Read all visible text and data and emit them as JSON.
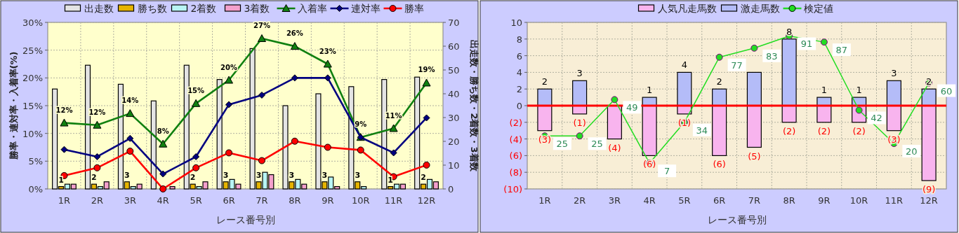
{
  "chart_data": [
    {
      "type": "bar",
      "xlabel": "レース番号別",
      "ylabel": "勝率・連対率・入着率(%)",
      "y2label": "出走数・勝ち数・2着数・3着数",
      "categories": [
        "1R",
        "2R",
        "3R",
        "4R",
        "5R",
        "6R",
        "7R",
        "8R",
        "9R",
        "10R",
        "11R",
        "12R"
      ],
      "ylim": [
        0,
        30
      ],
      "yticks": [
        {
          "value": 0,
          "label": "0%"
        },
        {
          "value": 5,
          "label": "5%"
        },
        {
          "value": 10,
          "label": "10%"
        },
        {
          "value": 15,
          "label": "15%"
        },
        {
          "value": 20,
          "label": "20%"
        },
        {
          "value": 25,
          "label": "25%"
        },
        {
          "value": 30,
          "label": "30%"
        }
      ],
      "y2lim": [
        0,
        70
      ],
      "y2ticks": [
        0,
        10,
        20,
        30,
        40,
        50,
        60,
        70
      ],
      "grid": true,
      "legend": "top",
      "series": [
        {
          "name": "出走数",
          "axis": "y2",
          "color": "#e4e4e4",
          "values": [
            42,
            52,
            44,
            37,
            52,
            46,
            59,
            35,
            40,
            43,
            46,
            47
          ]
        },
        {
          "name": "勝ち数",
          "axis": "y2",
          "color": "#e6b400",
          "values": [
            1,
            2,
            3,
            0,
            2,
            3,
            3,
            3,
            3,
            3,
            1,
            2
          ],
          "value_labels": [
            "1",
            "2",
            "3",
            null,
            "2",
            "3",
            "3",
            "3",
            "3",
            "3",
            "1",
            "2"
          ]
        },
        {
          "name": "2着数",
          "axis": "y2",
          "color": "#b8f4f4",
          "values": [
            2,
            1,
            1,
            null,
            1,
            4,
            7,
            4,
            5,
            1,
            2,
            4
          ]
        },
        {
          "name": "3着数",
          "axis": "y2",
          "color": "#f4a0cc",
          "values": [
            2,
            3,
            2,
            1,
            3,
            2,
            6,
            2,
            1,
            0,
            2,
            3
          ]
        },
        {
          "name": "入着率",
          "type": "line",
          "color": "#108010",
          "marker": "triangle",
          "values": [
            11.9,
            11.5,
            13.6,
            8.1,
            15.4,
            19.6,
            27.1,
            25.7,
            22.5,
            9.3,
            10.9,
            19.1
          ],
          "value_labels": [
            "12%",
            "12%",
            "14%",
            "8%",
            "15%",
            "20%",
            "27%",
            "26%",
            "23%",
            "9%",
            "11%",
            "19%"
          ]
        },
        {
          "name": "連対率",
          "type": "line",
          "color": "#000080",
          "marker": "diamond",
          "values": [
            7.1,
            5.8,
            9.1,
            2.7,
            5.8,
            15.2,
            16.9,
            20.0,
            20.0,
            9.3,
            6.5,
            12.8
          ]
        },
        {
          "name": "勝率",
          "type": "line",
          "color": "#ff0000",
          "marker": "circle",
          "values": [
            2.4,
            3.8,
            6.8,
            0,
            3.8,
            6.5,
            5.1,
            8.6,
            7.5,
            7.0,
            2.2,
            4.3
          ]
        }
      ]
    },
    {
      "type": "bar",
      "xlabel": "レース番号別",
      "categories": [
        "1R",
        "2R",
        "3R",
        "4R",
        "5R",
        "6R",
        "7R",
        "8R",
        "9R",
        "10R",
        "11R",
        "12R"
      ],
      "stacked": true,
      "ylim": [
        -10,
        10
      ],
      "y2lim": [
        -10,
        100
      ],
      "yticks": [
        {
          "value": -10,
          "label": "(10)"
        },
        {
          "value": -8,
          "label": "(8)"
        },
        {
          "value": -6,
          "label": "(6)"
        },
        {
          "value": -4,
          "label": "(4)"
        },
        {
          "value": -2,
          "label": "(2)"
        },
        0,
        2,
        4,
        6,
        8,
        10
      ],
      "grid": true,
      "legend": "top",
      "ref_lines": [
        {
          "axis": "y",
          "value": 0,
          "color": "#ff0000"
        }
      ],
      "series": [
        {
          "name": "人気凡走馬数",
          "color": "#f8b4ee",
          "values": [
            -3,
            -1,
            -4,
            -6,
            -1,
            -6,
            -5,
            -2,
            -2,
            -2,
            -3,
            -9
          ],
          "value_labels": [
            "(3)",
            "(1)",
            "(4)",
            "(6)",
            "(1)",
            "(6)",
            "(5)",
            "(2)",
            "(2)",
            "(2)",
            "(3)",
            "(9)"
          ]
        },
        {
          "name": "激走馬数",
          "color": "#b4bcf8",
          "values": [
            2,
            3,
            0,
            1,
            4,
            2,
            4,
            8,
            1,
            1,
            3,
            2
          ],
          "value_labels": [
            "2",
            "3",
            null,
            "1",
            "4",
            "2",
            null,
            "8",
            "1",
            "1",
            "3",
            "2"
          ]
        },
        {
          "name": "検定値",
          "type": "line",
          "axis": "y2",
          "color": "#22dd22",
          "marker": "circle",
          "values": [
            25,
            25,
            49,
            7,
            34,
            77,
            83,
            91,
            87,
            42,
            20,
            60
          ],
          "value_labels": [
            "25",
            "25",
            "49",
            "7",
            "34",
            "77",
            "83",
            "91",
            "87",
            "42",
            "20",
            "60"
          ]
        }
      ]
    }
  ]
}
